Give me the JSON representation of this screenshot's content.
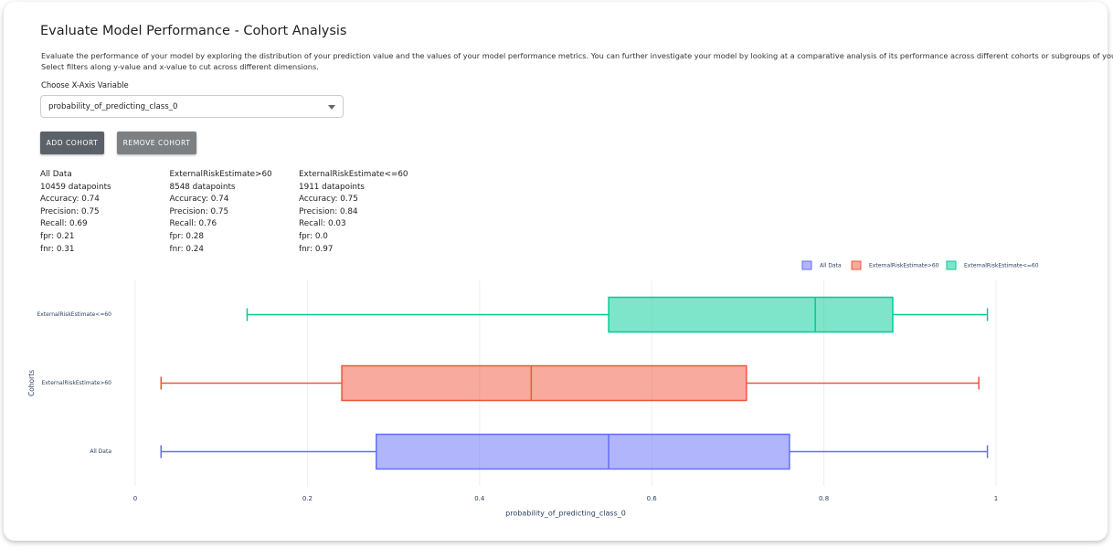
{
  "header": {
    "title": "Evaluate Model Performance - Cohort Analysis",
    "description": [
      "Evaluate the performance of your model by exploring the distribution of your prediction value and the values of your model performance metrics. You can further investigate your model by looking at a comparative analysis of its performance across different cohorts or subgroups of your dataset.",
      "Select filters along y-value and x-value to cut across different dimensions."
    ],
    "selector_label": "Choose X-Axis Variable"
  },
  "dropdown": {
    "selected": "probability_of_predicting_class_0"
  },
  "buttons": [
    "ADD COHORT",
    "REMOVE COHORT"
  ],
  "cohorts": [
    {
      "name": "All Data",
      "lines": [
        "10459 datapoints",
        "Accuracy: 0.74",
        "Precision: 0.75",
        "Recall: 0.69",
        "fpr: 0.21",
        "fnr: 0.31"
      ]
    },
    {
      "name": "ExternalRiskEstimate>60",
      "lines": [
        "8548 datapoints",
        "Accuracy: 0.74",
        "Precision: 0.75",
        "Recall: 0.76",
        "fpr: 0.28",
        "fnr: 0.24"
      ]
    },
    {
      "name": "ExternalRiskEstimate<=60",
      "lines": [
        "1911 datapoints",
        "Accuracy: 0.75",
        "Precision: 0.84",
        "Recall: 0.03",
        "fpr: 0.0",
        "fnr: 0.97"
      ]
    }
  ],
  "chart_data": {
    "type": "box",
    "orientation": "horizontal",
    "categories": [
      "All Data",
      "ExternalRiskEstimate>60",
      "ExternalRiskEstimate<=60"
    ],
    "series": [
      {
        "name": "All Data",
        "color": "#636efa",
        "min": 0.03,
        "q1": 0.28,
        "median": 0.55,
        "q3": 0.76,
        "max": 0.99
      },
      {
        "name": "ExternalRiskEstimate>60",
        "color": "#ef553b",
        "min": 0.03,
        "q1": 0.24,
        "median": 0.46,
        "q3": 0.71,
        "max": 0.98
      },
      {
        "name": "ExternalRiskEstimate<=60",
        "color": "#00cc96",
        "min": 0.13,
        "q1": 0.55,
        "median": 0.79,
        "q3": 0.88,
        "max": 0.99
      }
    ],
    "xlabel": "probability_of_predicting_class_0",
    "ylabel": "Cohorts",
    "xlim": [
      0,
      1
    ],
    "xticks": [
      0,
      0.2,
      0.4,
      0.6,
      0.8,
      1
    ],
    "grid": true,
    "legend": "top-right"
  }
}
